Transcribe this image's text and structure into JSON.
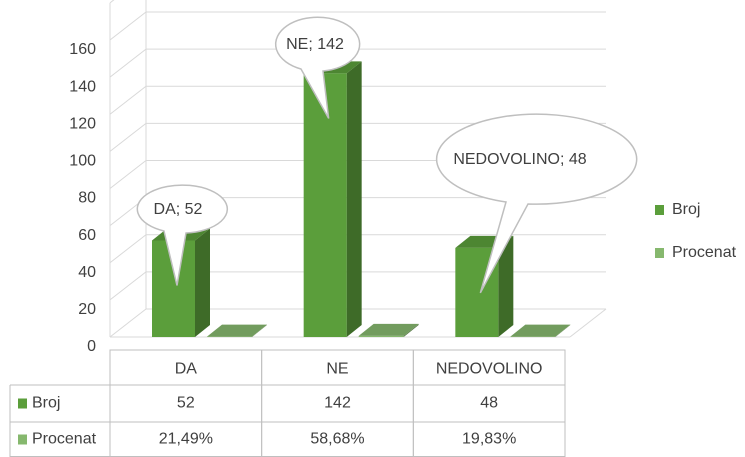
{
  "chart_data": {
    "type": "bar",
    "categories": [
      "DA",
      "NE",
      "NEDOVOLINO"
    ],
    "series": [
      {
        "name": "Broj",
        "color": "#5b9e3b",
        "values": [
          52,
          142,
          48
        ],
        "value_labels": [
          "DA; 52",
          "NE; 142",
          "NEDOVOLINO; 48"
        ]
      },
      {
        "name": "Procenat",
        "color": "#86b86e",
        "values": [
          0.2149,
          0.5868,
          0.1983
        ],
        "value_labels": [
          "21,49%",
          "58,68%",
          "19,83%"
        ]
      }
    ],
    "ylim": [
      0,
      180
    ],
    "yticks": [
      0,
      20,
      40,
      60,
      80,
      100,
      120,
      140,
      160
    ],
    "grid": true,
    "legend": "right"
  }
}
